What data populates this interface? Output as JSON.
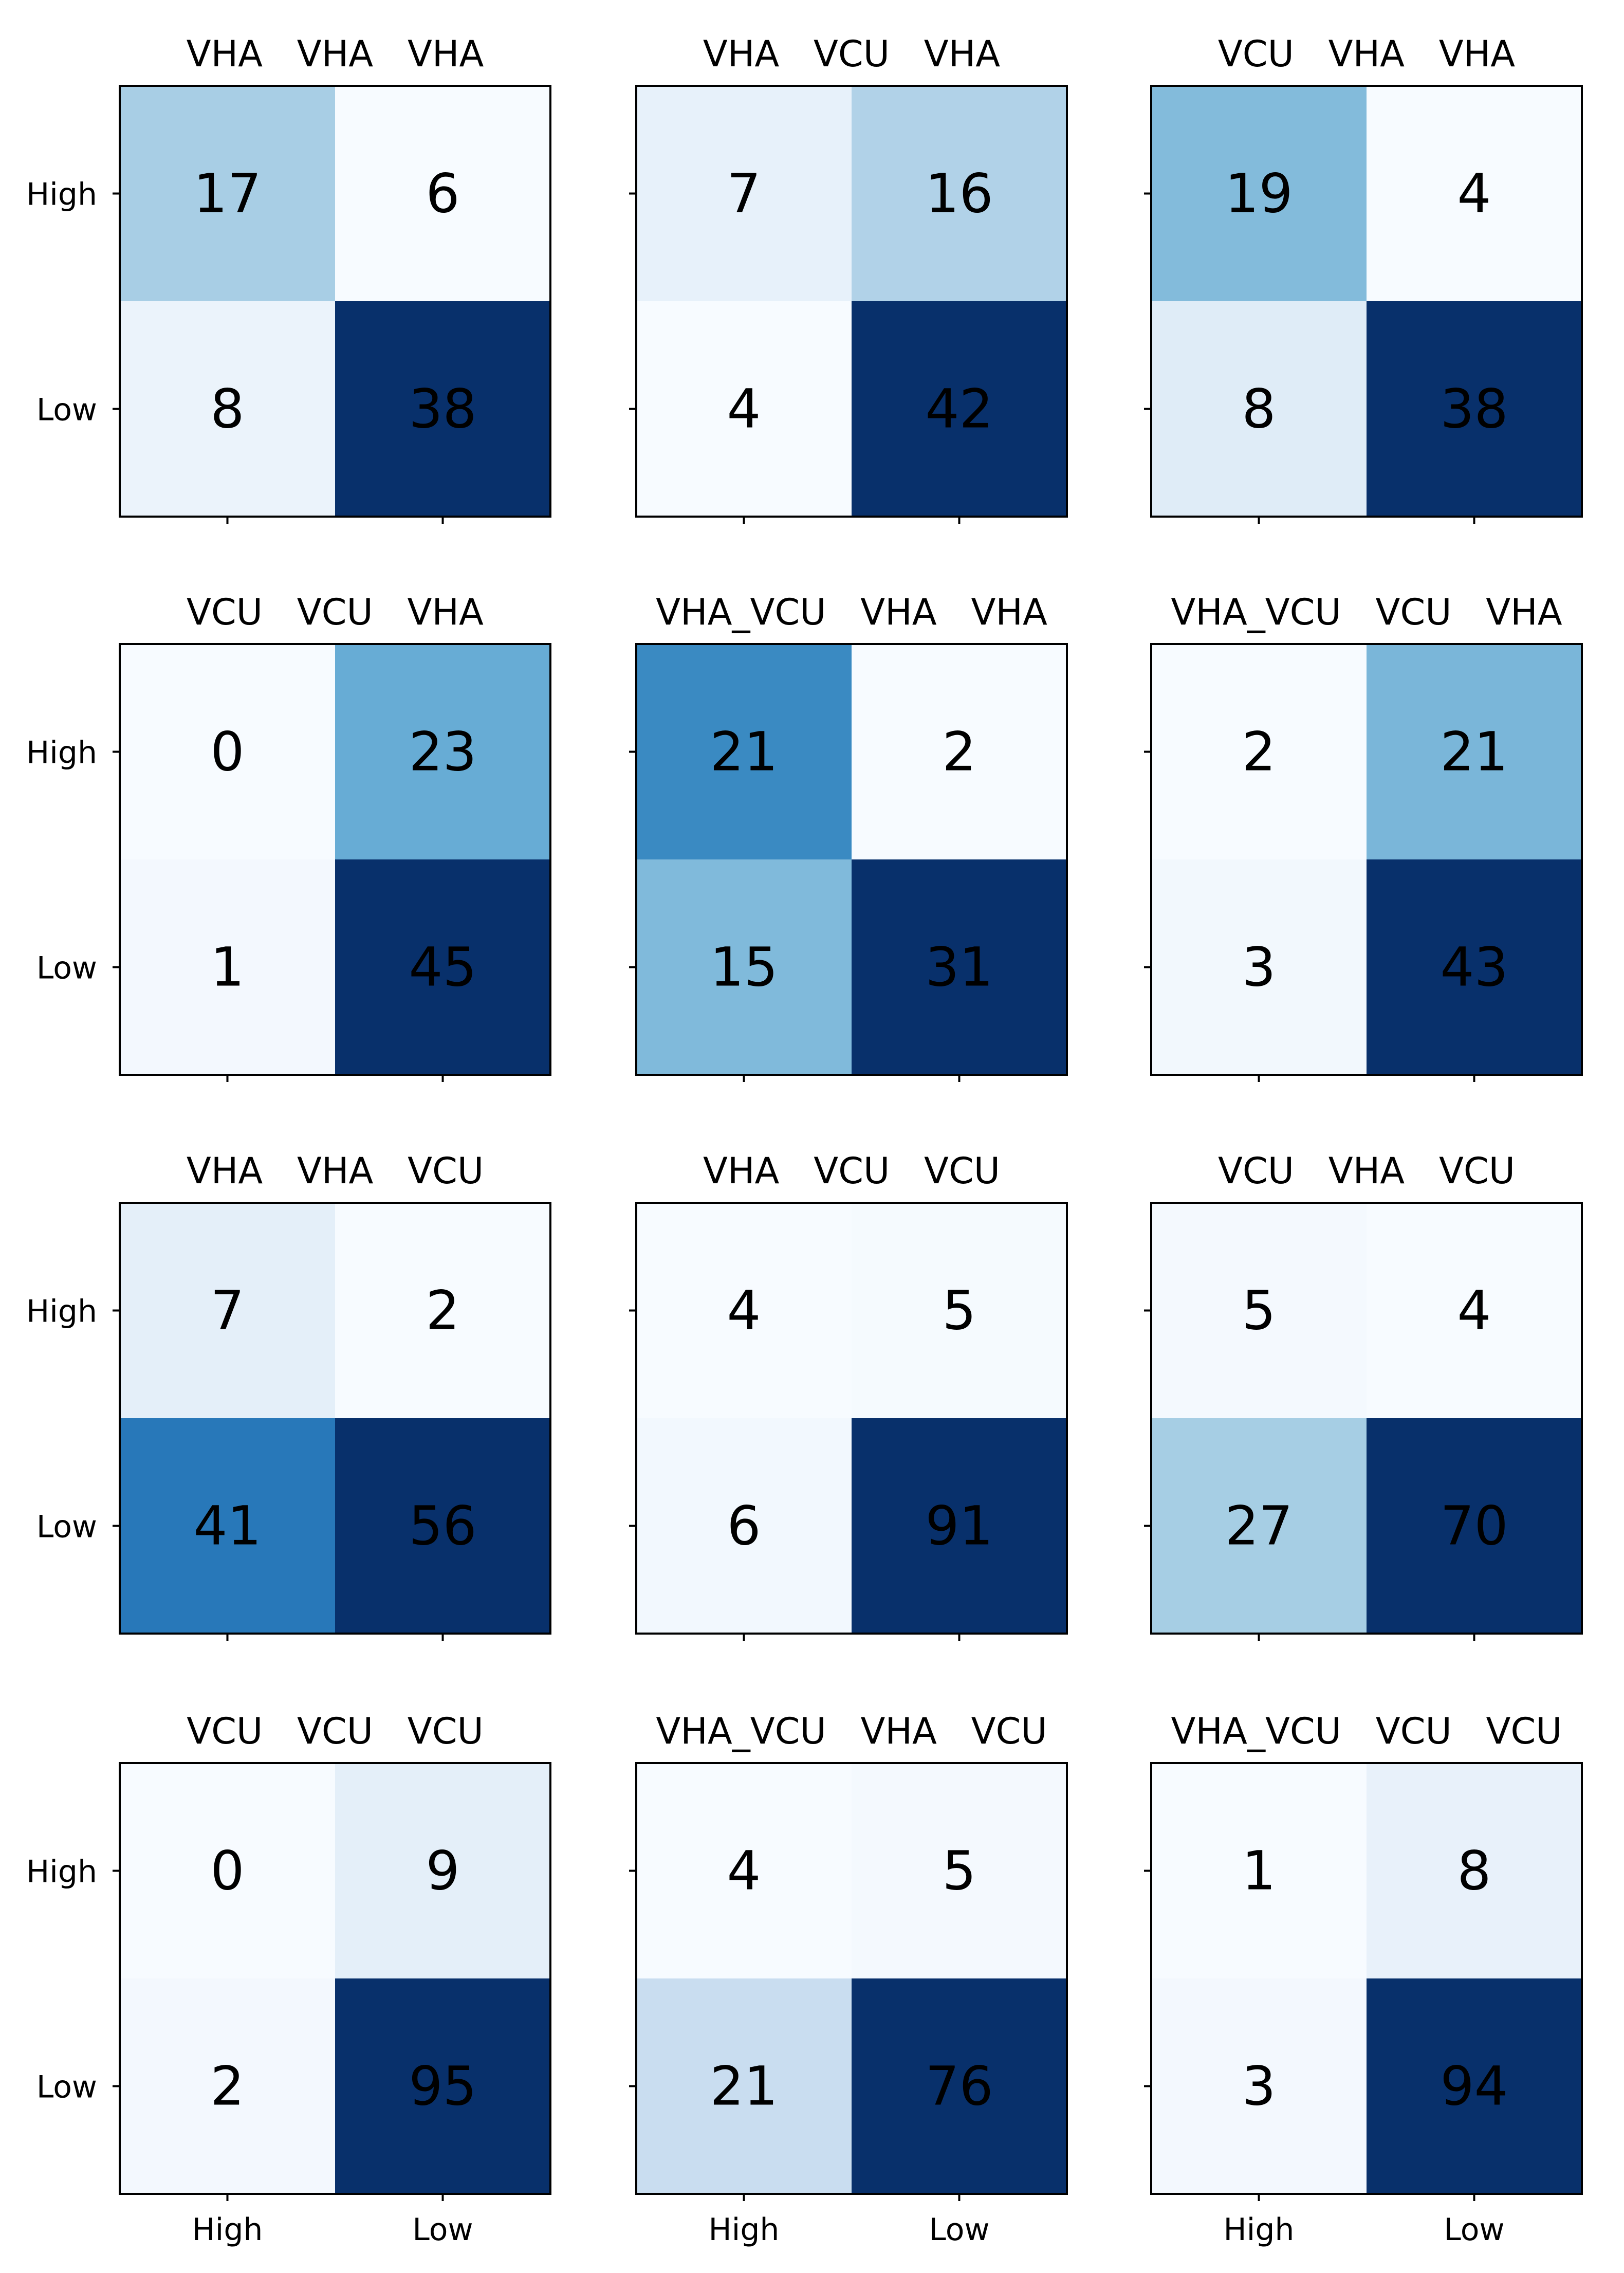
{
  "figure": {
    "row_labels": [
      "High",
      "Low"
    ],
    "col_labels": [
      "High",
      "Low"
    ]
  },
  "chart_data": [
    {
      "type": "heatmap",
      "title": "VHA   VHA   VHA",
      "rows": [
        "High",
        "Low"
      ],
      "cols": [
        "High",
        "Low"
      ],
      "values": [
        [
          17,
          6
        ],
        [
          8,
          38
        ]
      ]
    },
    {
      "type": "heatmap",
      "title": "VHA   VCU   VHA",
      "rows": [
        "High",
        "Low"
      ],
      "cols": [
        "High",
        "Low"
      ],
      "values": [
        [
          7,
          16
        ],
        [
          4,
          42
        ]
      ]
    },
    {
      "type": "heatmap",
      "title": "VCU   VHA   VHA",
      "rows": [
        "High",
        "Low"
      ],
      "cols": [
        "High",
        "Low"
      ],
      "values": [
        [
          19,
          4
        ],
        [
          8,
          38
        ]
      ]
    },
    {
      "type": "heatmap",
      "title": "VCU   VCU   VHA",
      "rows": [
        "High",
        "Low"
      ],
      "cols": [
        "High",
        "Low"
      ],
      "values": [
        [
          0,
          23
        ],
        [
          1,
          45
        ]
      ]
    },
    {
      "type": "heatmap",
      "title": "VHA_VCU   VHA   VHA",
      "rows": [
        "High",
        "Low"
      ],
      "cols": [
        "High",
        "Low"
      ],
      "values": [
        [
          21,
          2
        ],
        [
          15,
          31
        ]
      ]
    },
    {
      "type": "heatmap",
      "title": "VHA_VCU   VCU   VHA",
      "rows": [
        "High",
        "Low"
      ],
      "cols": [
        "High",
        "Low"
      ],
      "values": [
        [
          2,
          21
        ],
        [
          3,
          43
        ]
      ]
    },
    {
      "type": "heatmap",
      "title": "VHA   VHA   VCU",
      "rows": [
        "High",
        "Low"
      ],
      "cols": [
        "High",
        "Low"
      ],
      "values": [
        [
          7,
          2
        ],
        [
          41,
          56
        ]
      ]
    },
    {
      "type": "heatmap",
      "title": "VHA   VCU   VCU",
      "rows": [
        "High",
        "Low"
      ],
      "cols": [
        "High",
        "Low"
      ],
      "values": [
        [
          4,
          5
        ],
        [
          6,
          91
        ]
      ]
    },
    {
      "type": "heatmap",
      "title": "VCU   VHA   VCU",
      "rows": [
        "High",
        "Low"
      ],
      "cols": [
        "High",
        "Low"
      ],
      "values": [
        [
          5,
          4
        ],
        [
          27,
          70
        ]
      ]
    },
    {
      "type": "heatmap",
      "title": "VCU   VCU   VCU",
      "rows": [
        "High",
        "Low"
      ],
      "cols": [
        "High",
        "Low"
      ],
      "values": [
        [
          0,
          9
        ],
        [
          2,
          95
        ]
      ]
    },
    {
      "type": "heatmap",
      "title": "VHA_VCU   VHA   VCU",
      "rows": [
        "High",
        "Low"
      ],
      "cols": [
        "High",
        "Low"
      ],
      "values": [
        [
          4,
          5
        ],
        [
          21,
          76
        ]
      ]
    },
    {
      "type": "heatmap",
      "title": "VHA_VCU   VCU   VCU",
      "rows": [
        "High",
        "Low"
      ],
      "cols": [
        "High",
        "Low"
      ],
      "values": [
        [
          1,
          8
        ],
        [
          3,
          94
        ]
      ]
    }
  ]
}
